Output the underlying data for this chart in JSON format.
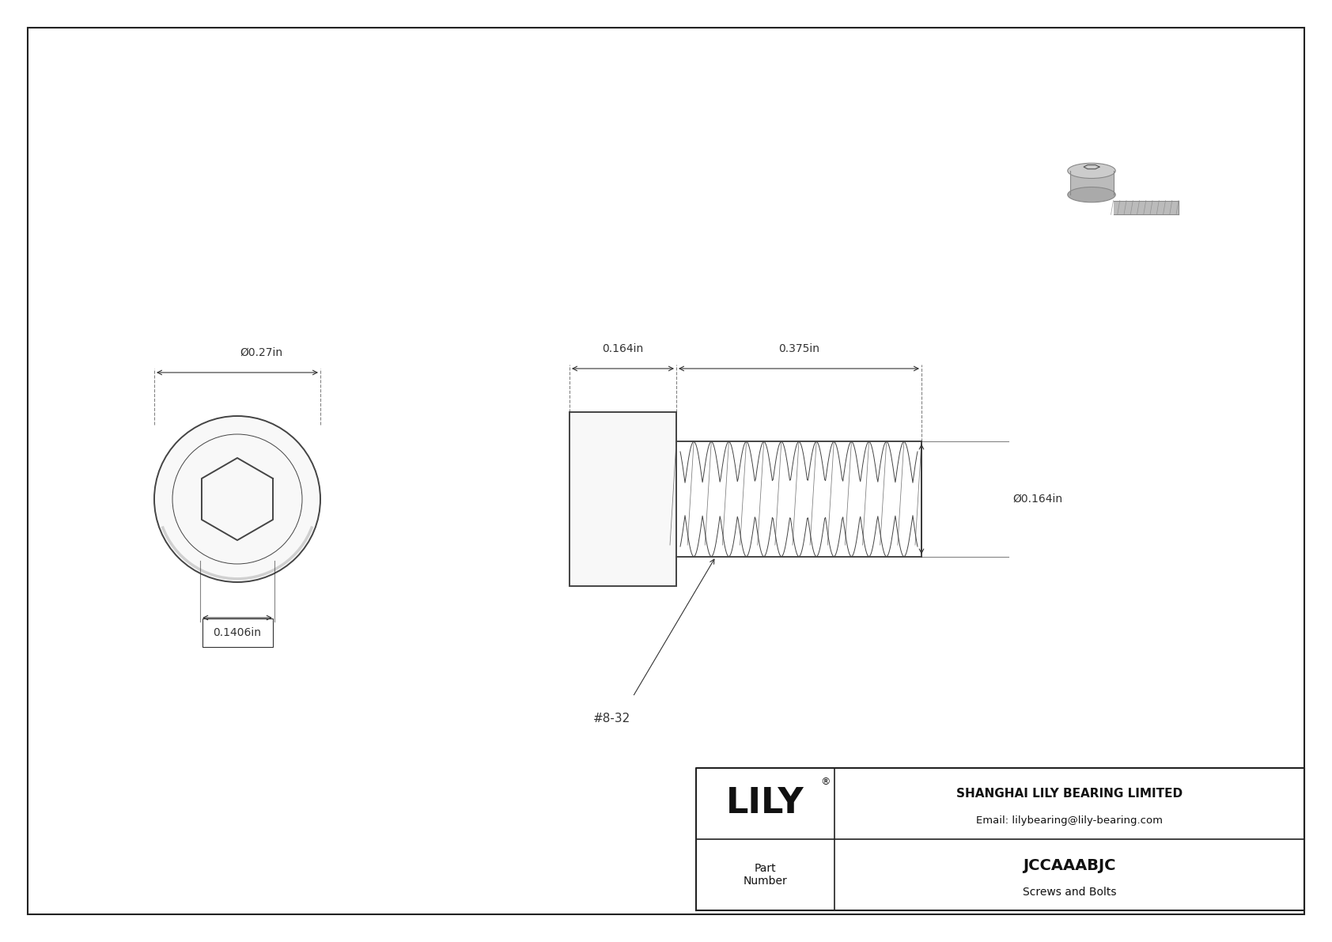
{
  "bg_color": "#ffffff",
  "border_color": "#333333",
  "line_color": "#444444",
  "dim_color": "#333333",
  "title_company": "SHANGHAI LILY BEARING LIMITED",
  "title_email": "Email: lilybearing@lily-bearing.com",
  "part_number": "JCCAAABJC",
  "part_category": "Screws and Bolts",
  "part_label": "Part\nNumber",
  "lily_logo": "LILY",
  "dim_diameter_top": "Ø0.27in",
  "dim_hex_inner": "0.1406in",
  "dim_head_len": "0.164in",
  "dim_thread_len": "0.375in",
  "dim_thread_dia": "Ø0.164in",
  "thread_label": "#8-32",
  "font_size_dim": 10,
  "font_size_label": 11,
  "font_size_logo": 32,
  "font_size_company": 11,
  "font_size_part": 14
}
